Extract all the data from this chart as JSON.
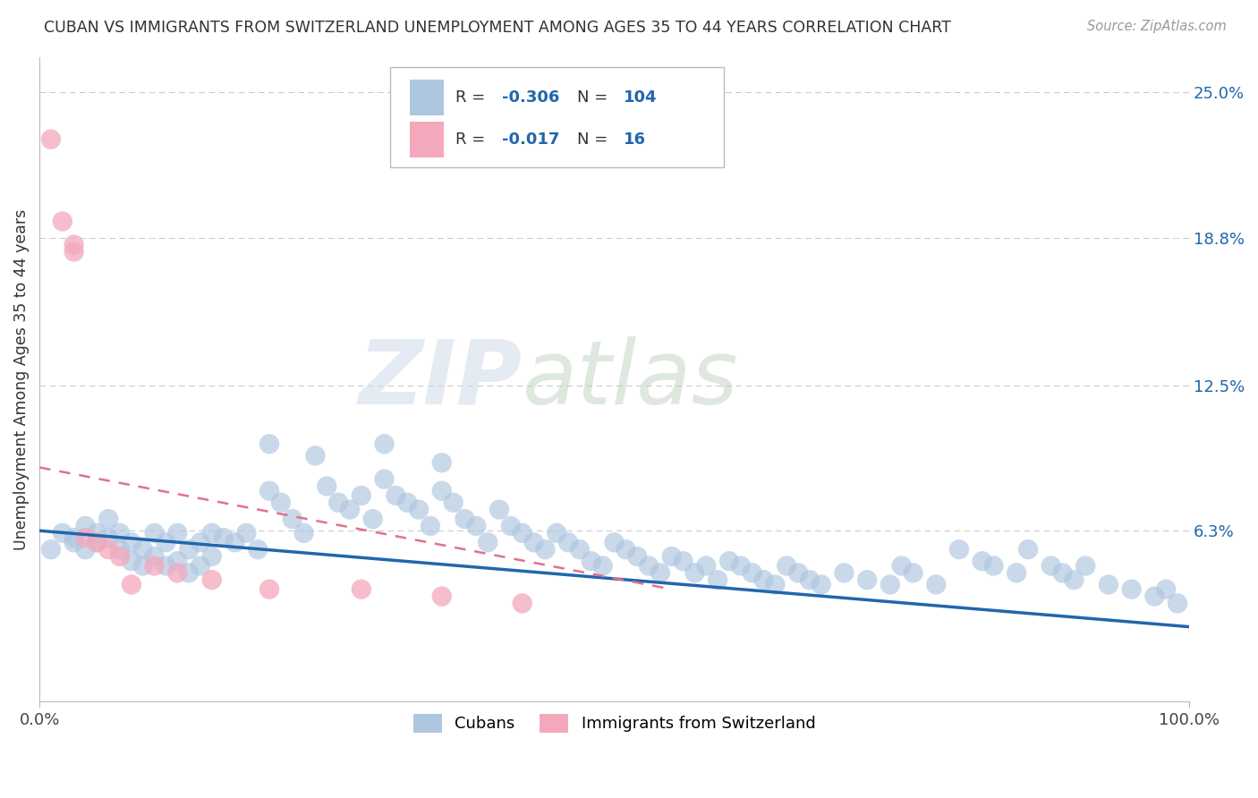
{
  "title": "CUBAN VS IMMIGRANTS FROM SWITZERLAND UNEMPLOYMENT AMONG AGES 35 TO 44 YEARS CORRELATION CHART",
  "source": "Source: ZipAtlas.com",
  "ylabel": "Unemployment Among Ages 35 to 44 years",
  "xlim": [
    0.0,
    1.0
  ],
  "ylim": [
    -0.01,
    0.265
  ],
  "right_yticks": [
    0.063,
    0.125,
    0.188,
    0.25
  ],
  "right_ytick_labels": [
    "6.3%",
    "12.5%",
    "18.8%",
    "25.0%"
  ],
  "xticks": [
    0.0,
    1.0
  ],
  "xtick_labels": [
    "0.0%",
    "100.0%"
  ],
  "blue_color": "#aec6e0",
  "pink_color": "#f4a8bc",
  "blue_line_color": "#2166ac",
  "pink_line_color": "#e07090",
  "R_blue": "-0.306",
  "N_blue": "104",
  "R_pink": "-0.017",
  "N_pink": "16",
  "watermark1": "ZIP",
  "watermark2": "atlas",
  "grid_color": "#cccccc",
  "blue_points_x": [
    0.01,
    0.02,
    0.03,
    0.03,
    0.04,
    0.04,
    0.05,
    0.05,
    0.06,
    0.06,
    0.07,
    0.07,
    0.08,
    0.08,
    0.09,
    0.09,
    0.1,
    0.1,
    0.11,
    0.11,
    0.12,
    0.12,
    0.13,
    0.13,
    0.14,
    0.14,
    0.15,
    0.15,
    0.16,
    0.17,
    0.18,
    0.19,
    0.2,
    0.21,
    0.22,
    0.23,
    0.25,
    0.26,
    0.27,
    0.28,
    0.29,
    0.3,
    0.31,
    0.32,
    0.33,
    0.34,
    0.35,
    0.36,
    0.37,
    0.38,
    0.39,
    0.4,
    0.41,
    0.42,
    0.43,
    0.44,
    0.45,
    0.46,
    0.47,
    0.48,
    0.49,
    0.5,
    0.51,
    0.52,
    0.53,
    0.54,
    0.55,
    0.56,
    0.57,
    0.58,
    0.59,
    0.6,
    0.61,
    0.62,
    0.63,
    0.64,
    0.65,
    0.66,
    0.67,
    0.68,
    0.7,
    0.72,
    0.74,
    0.75,
    0.76,
    0.78,
    0.8,
    0.82,
    0.83,
    0.85,
    0.86,
    0.88,
    0.89,
    0.9,
    0.91,
    0.93,
    0.95,
    0.97,
    0.98,
    0.99,
    0.2,
    0.24,
    0.3,
    0.35
  ],
  "blue_points_y": [
    0.055,
    0.062,
    0.06,
    0.058,
    0.065,
    0.055,
    0.062,
    0.058,
    0.068,
    0.06,
    0.062,
    0.055,
    0.058,
    0.05,
    0.055,
    0.048,
    0.062,
    0.052,
    0.058,
    0.048,
    0.062,
    0.05,
    0.055,
    0.045,
    0.058,
    0.048,
    0.062,
    0.052,
    0.06,
    0.058,
    0.062,
    0.055,
    0.08,
    0.075,
    0.068,
    0.062,
    0.082,
    0.075,
    0.072,
    0.078,
    0.068,
    0.085,
    0.078,
    0.075,
    0.072,
    0.065,
    0.08,
    0.075,
    0.068,
    0.065,
    0.058,
    0.072,
    0.065,
    0.062,
    0.058,
    0.055,
    0.062,
    0.058,
    0.055,
    0.05,
    0.048,
    0.058,
    0.055,
    0.052,
    0.048,
    0.045,
    0.052,
    0.05,
    0.045,
    0.048,
    0.042,
    0.05,
    0.048,
    0.045,
    0.042,
    0.04,
    0.048,
    0.045,
    0.042,
    0.04,
    0.045,
    0.042,
    0.04,
    0.048,
    0.045,
    0.04,
    0.055,
    0.05,
    0.048,
    0.045,
    0.055,
    0.048,
    0.045,
    0.042,
    0.048,
    0.04,
    0.038,
    0.035,
    0.038,
    0.032,
    0.1,
    0.095,
    0.1,
    0.092
  ],
  "pink_points_x": [
    0.01,
    0.02,
    0.03,
    0.03,
    0.04,
    0.05,
    0.06,
    0.07,
    0.1,
    0.12,
    0.15,
    0.2,
    0.28,
    0.35,
    0.42,
    0.08
  ],
  "pink_points_y": [
    0.23,
    0.195,
    0.185,
    0.182,
    0.06,
    0.058,
    0.055,
    0.052,
    0.048,
    0.045,
    0.042,
    0.038,
    0.038,
    0.035,
    0.032,
    0.04
  ],
  "blue_line_x0": 0.0,
  "blue_line_y0": 0.063,
  "blue_line_x1": 1.0,
  "blue_line_y1": 0.022,
  "pink_line_x0": 0.0,
  "pink_line_y0": 0.09,
  "pink_line_x1": 0.55,
  "pink_line_y1": 0.038
}
